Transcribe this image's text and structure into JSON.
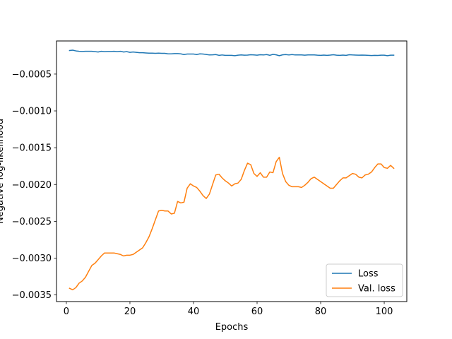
{
  "chart_data": {
    "type": "line",
    "title": "",
    "xlabel": "Epochs",
    "ylabel": "Negative log-likelihood",
    "xlim": [
      -3.1,
      107.1
    ],
    "ylim": [
      -0.00359,
      -5e-05
    ],
    "x_ticks": [
      0,
      20,
      40,
      60,
      80,
      100
    ],
    "x_tick_labels": [
      "0",
      "20",
      "40",
      "60",
      "80",
      "100"
    ],
    "y_ticks": [
      -0.0035,
      -0.003,
      -0.0025,
      -0.002,
      -0.0015,
      -0.001,
      -0.0005
    ],
    "y_tick_labels": [
      "−0.0035",
      "−0.0030",
      "−0.0025",
      "−0.0020",
      "−0.0015",
      "−0.0010",
      "−0.0005"
    ],
    "grid": false,
    "legend_position": "lower-right",
    "x": [
      1,
      2,
      3,
      4,
      5,
      6,
      7,
      8,
      9,
      10,
      11,
      12,
      13,
      14,
      15,
      16,
      17,
      18,
      19,
      20,
      21,
      22,
      23,
      24,
      25,
      26,
      27,
      28,
      29,
      30,
      31,
      32,
      33,
      34,
      35,
      36,
      37,
      38,
      39,
      40,
      41,
      42,
      43,
      44,
      45,
      46,
      47,
      48,
      49,
      50,
      51,
      52,
      53,
      54,
      55,
      56,
      57,
      58,
      59,
      60,
      61,
      62,
      63,
      64,
      65,
      66,
      67,
      68,
      69,
      70,
      71,
      72,
      73,
      74,
      75,
      76,
      77,
      78,
      79,
      80,
      81,
      82,
      83,
      84,
      85,
      86,
      87,
      88,
      89,
      90,
      91,
      92,
      93,
      94,
      95,
      96,
      97,
      98,
      99,
      100,
      101,
      102,
      103
    ],
    "series": [
      {
        "name": "Loss",
        "color": "#1f77b4",
        "values": [
          -0.00018,
          -0.000175,
          -0.000185,
          -0.00019,
          -0.000193,
          -0.00019,
          -0.00019,
          -0.00019,
          -0.000195,
          -0.0002,
          -0.00019,
          -0.000195,
          -0.000193,
          -0.000193,
          -0.00019,
          -0.000195,
          -0.00019,
          -0.0002,
          -0.000195,
          -0.000205,
          -0.0002,
          -0.000205,
          -0.00021,
          -0.00021,
          -0.000213,
          -0.000215,
          -0.000215,
          -0.000218,
          -0.000215,
          -0.000218,
          -0.000218,
          -0.000225,
          -0.000225,
          -0.000222,
          -0.000222,
          -0.000225,
          -0.000235,
          -0.000228,
          -0.000228,
          -0.000228,
          -0.000235,
          -0.000225,
          -0.000228,
          -0.000233,
          -0.00024,
          -0.000238,
          -0.000235,
          -0.000245,
          -0.00024,
          -0.000245,
          -0.000245,
          -0.000245,
          -0.00025,
          -0.000243,
          -0.00024,
          -0.000243,
          -0.000242,
          -0.000237,
          -0.00024,
          -0.000243,
          -0.000237,
          -0.00024,
          -0.000235,
          -0.000245,
          -0.000232,
          -0.000238,
          -0.00025,
          -0.000238,
          -0.000235,
          -0.00024,
          -0.000235,
          -0.00024,
          -0.00024,
          -0.00024,
          -0.000243,
          -0.00024,
          -0.00024,
          -0.00024,
          -0.000243,
          -0.000245,
          -0.000242,
          -0.000245,
          -0.000242,
          -0.000237,
          -0.000243,
          -0.000245,
          -0.000242,
          -0.000245,
          -0.000237,
          -0.00024,
          -0.000242,
          -0.000243,
          -0.000242,
          -0.000243,
          -0.000245,
          -0.000248,
          -0.000245,
          -0.000247,
          -0.000243,
          -0.000243,
          -0.00025,
          -0.000243,
          -0.000243
        ]
      },
      {
        "name": "Val. loss",
        "color": "#ff7f0e",
        "values": [
          -0.00341,
          -0.00343,
          -0.0034,
          -0.00334,
          -0.00331,
          -0.00326,
          -0.00318,
          -0.0031,
          -0.00307,
          -0.00302,
          -0.00297,
          -0.00293,
          -0.00293,
          -0.00293,
          -0.00293,
          -0.00294,
          -0.00295,
          -0.00297,
          -0.00296,
          -0.00296,
          -0.00295,
          -0.00292,
          -0.00289,
          -0.00286,
          -0.00279,
          -0.00271,
          -0.0026,
          -0.00248,
          -0.00236,
          -0.00235,
          -0.00236,
          -0.00236,
          -0.0024,
          -0.00239,
          -0.00223,
          -0.00225,
          -0.00224,
          -0.00205,
          -0.00199,
          -0.00202,
          -0.00204,
          -0.00209,
          -0.00215,
          -0.00219,
          -0.00213,
          -0.002,
          -0.00187,
          -0.00186,
          -0.00191,
          -0.00195,
          -0.00198,
          -0.00202,
          -0.00199,
          -0.00198,
          -0.00193,
          -0.00181,
          -0.00171,
          -0.00173,
          -0.00185,
          -0.00189,
          -0.00184,
          -0.0019,
          -0.0019,
          -0.00183,
          -0.00184,
          -0.00169,
          -0.00163,
          -0.00185,
          -0.00196,
          -0.00201,
          -0.00203,
          -0.00203,
          -0.00203,
          -0.00204,
          -0.00201,
          -0.00197,
          -0.00192,
          -0.0019,
          -0.00193,
          -0.00196,
          -0.00199,
          -0.00202,
          -0.00205,
          -0.00205,
          -0.002,
          -0.00195,
          -0.00191,
          -0.00191,
          -0.00188,
          -0.00185,
          -0.00186,
          -0.0019,
          -0.00191,
          -0.00187,
          -0.00186,
          -0.00183,
          -0.00177,
          -0.00172,
          -0.00172,
          -0.00177,
          -0.00178,
          -0.00174,
          -0.00178
        ]
      }
    ]
  }
}
